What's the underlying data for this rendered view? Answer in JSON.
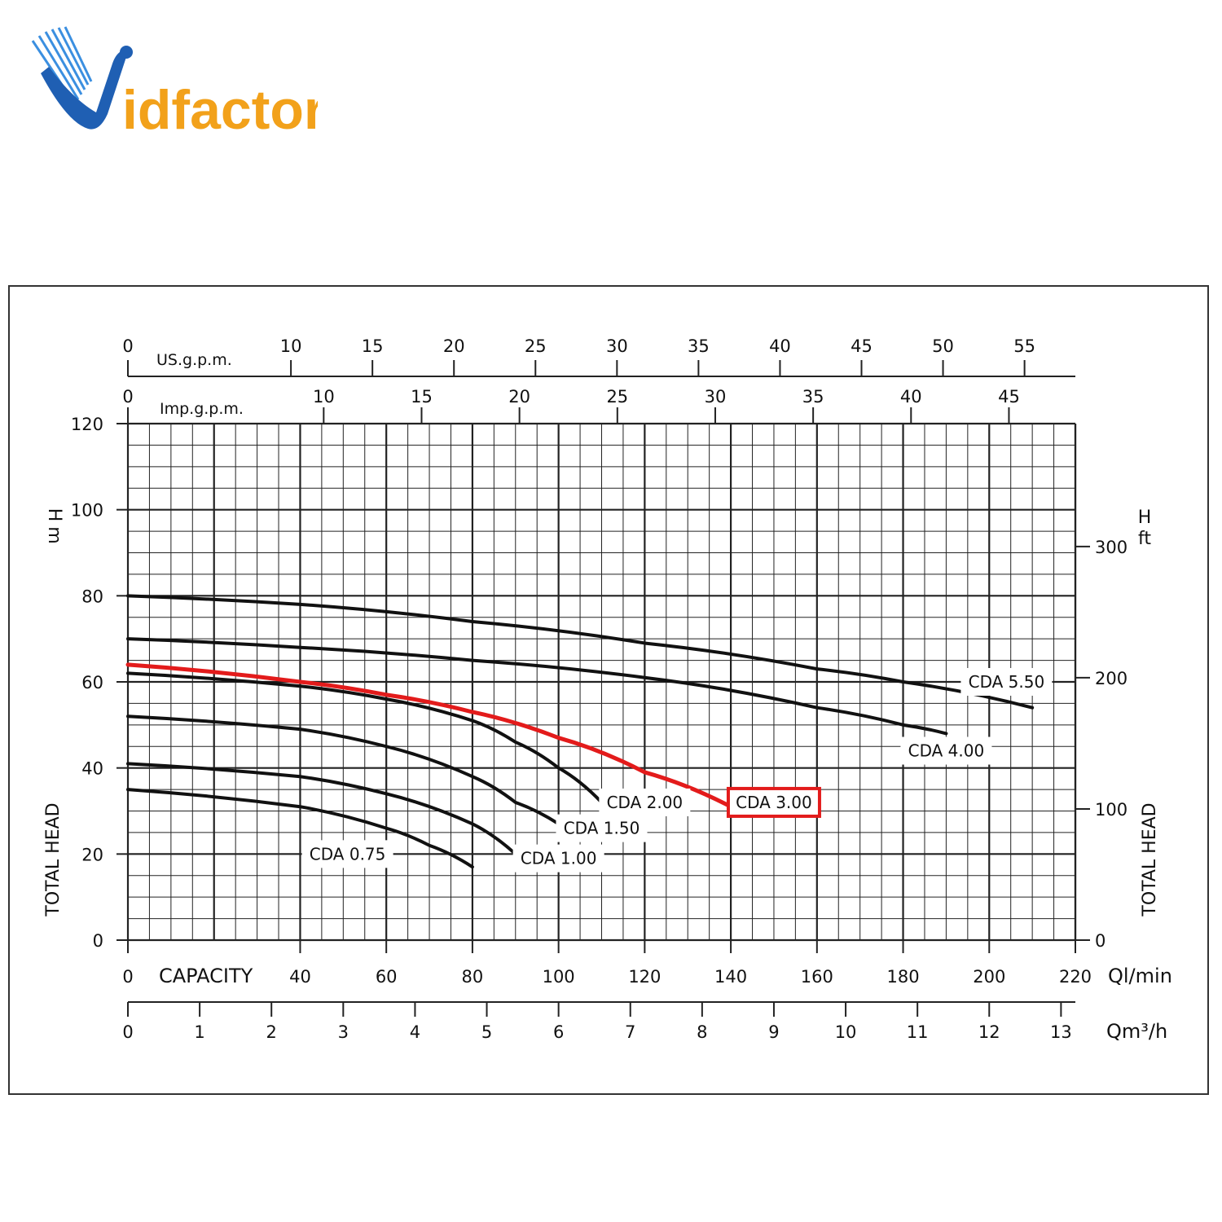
{
  "logo": {
    "text_v": "V",
    "text_rest": "idfactor",
    "blue": "#1f5fb3",
    "orange": "#f2a11a"
  },
  "colors": {
    "grid": "#222222",
    "highlight": "#e31b1b",
    "curve": "#111111"
  },
  "chart_data": {
    "type": "line",
    "x_axis": {
      "label": "CAPACITY",
      "unit": "Ql/min",
      "range": [
        0,
        220
      ],
      "ticks": [
        "0",
        "40",
        "60",
        "80",
        "100",
        "120",
        "140",
        "160",
        "180",
        "200",
        "220"
      ]
    },
    "x_axis_m3h": {
      "unit": "Qm³/h",
      "range": [
        0,
        13.2
      ],
      "ticks": [
        "0",
        "1",
        "2",
        "3",
        "4",
        "5",
        "6",
        "7",
        "8",
        "9",
        "10",
        "11",
        "12",
        "13"
      ]
    },
    "x_axis_usgpm": {
      "label": "US.g.p.m.",
      "range": [
        0,
        58.1
      ],
      "ticks": [
        "0",
        "10",
        "15",
        "20",
        "25",
        "30",
        "35",
        "40",
        "45",
        "50",
        "55"
      ]
    },
    "x_axis_impgpm": {
      "label": "Imp.g.p.m.",
      "range": [
        0,
        48.4
      ],
      "ticks": [
        "0",
        "10",
        "15",
        "20",
        "25",
        "30",
        "35",
        "40",
        "45"
      ]
    },
    "y_axis": {
      "label": "TOTAL HEAD",
      "unit_top": "H",
      "unit": "m",
      "range": [
        0,
        120
      ],
      "ticks": [
        "0",
        "20",
        "40",
        "60",
        "80",
        "100",
        "120"
      ]
    },
    "y_axis_right": {
      "label": "TOTAL HEAD",
      "unit_top": "H",
      "unit": "ft",
      "ticks": [
        "0",
        "100",
        "200",
        "300"
      ]
    },
    "grid": true,
    "series": [
      {
        "name": "CDA 0.75",
        "highlight": false,
        "x": [
          0,
          40,
          60,
          70,
          80
        ],
        "y": [
          35,
          31,
          26,
          22,
          17
        ]
      },
      {
        "name": "CDA 1.00",
        "highlight": false,
        "x": [
          0,
          40,
          60,
          80,
          90
        ],
        "y": [
          41,
          38,
          34,
          27,
          20
        ]
      },
      {
        "name": "CDA 1.50",
        "highlight": false,
        "x": [
          0,
          40,
          60,
          80,
          90,
          100
        ],
        "y": [
          52,
          49,
          45,
          38,
          32,
          27
        ]
      },
      {
        "name": "CDA 2.00",
        "highlight": false,
        "x": [
          0,
          40,
          60,
          80,
          90,
          100,
          110
        ],
        "y": [
          62,
          59,
          56,
          51,
          46,
          40,
          32
        ]
      },
      {
        "name": "CDA 3.00",
        "highlight": true,
        "x": [
          0,
          40,
          60,
          80,
          100,
          120,
          140
        ],
        "y": [
          64,
          60,
          57,
          53,
          47,
          39,
          31
        ]
      },
      {
        "name": "CDA 4.00",
        "highlight": false,
        "x": [
          0,
          40,
          80,
          120,
          160,
          180,
          190
        ],
        "y": [
          70,
          68,
          65,
          61,
          54,
          50,
          48
        ]
      },
      {
        "name": "CDA 5.50",
        "highlight": false,
        "x": [
          0,
          40,
          80,
          120,
          160,
          180,
          210
        ],
        "y": [
          80,
          78,
          74,
          69,
          63,
          60,
          54
        ]
      }
    ],
    "annotations": [
      "CDA 0.75",
      "CDA 1.00",
      "CDA 1.50",
      "CDA 2.00",
      "CDA 3.00",
      "CDA 4.00",
      "CDA 5.50"
    ]
  }
}
